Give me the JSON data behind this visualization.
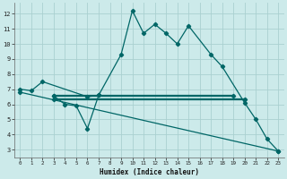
{
  "xlabel": "Humidex (Indice chaleur)",
  "background_color": "#cceaea",
  "grid_color": "#aad0d0",
  "line_color": "#006666",
  "xlim": [
    -0.5,
    23.5
  ],
  "ylim": [
    2.5,
    12.7
  ],
  "yticks": [
    3,
    4,
    5,
    6,
    7,
    8,
    9,
    10,
    11,
    12
  ],
  "xticks": [
    0,
    1,
    2,
    3,
    4,
    5,
    6,
    7,
    8,
    9,
    10,
    11,
    12,
    13,
    14,
    15,
    16,
    17,
    18,
    19,
    20,
    21,
    22,
    23
  ],
  "main_curve_x": [
    0,
    1,
    2,
    6,
    7,
    9,
    10,
    11,
    12,
    13,
    14,
    15,
    17,
    18,
    20,
    21,
    22,
    23
  ],
  "main_curve_y": [
    7.0,
    6.9,
    7.5,
    6.5,
    6.6,
    9.3,
    12.2,
    10.7,
    11.3,
    10.7,
    10.0,
    11.2,
    9.3,
    8.5,
    6.1,
    5.0,
    3.7,
    2.9
  ],
  "flat_line1_x": [
    3,
    19
  ],
  "flat_line1_y": [
    6.55,
    6.55
  ],
  "flat_line2_x": [
    3,
    20
  ],
  "flat_line2_y": [
    6.3,
    6.3
  ],
  "dip_curve_x": [
    3,
    4,
    5,
    6,
    7
  ],
  "dip_curve_y": [
    6.55,
    6.0,
    5.9,
    4.4,
    6.6
  ],
  "diag_line_x": [
    0,
    23
  ],
  "diag_line_y": [
    6.8,
    2.9
  ]
}
